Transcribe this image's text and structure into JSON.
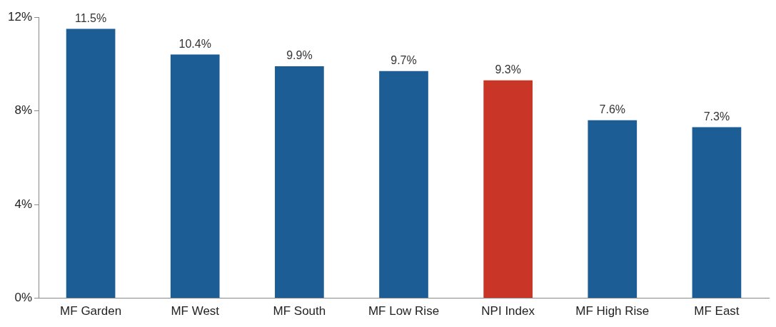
{
  "chart_data": {
    "type": "bar",
    "categories": [
      "MF Garden",
      "MF West",
      "MF South",
      "MF Low Rise",
      "NPI Index",
      "MF High Rise",
      "MF East"
    ],
    "values": [
      11.5,
      10.4,
      9.9,
      9.7,
      9.3,
      7.6,
      7.3
    ],
    "colors": [
      "#1b5d94",
      "#1b5d94",
      "#1b5d94",
      "#1b5d94",
      "#c93627",
      "#1b5d94",
      "#1b5d94"
    ],
    "value_labels": [
      "11.5%",
      "10.4%",
      "9.9%",
      "9.7%",
      "9.3%",
      "7.6%",
      "7.3%"
    ],
    "ylim": [
      0,
      12
    ],
    "yticks": [
      {
        "value": 0,
        "label": "0%"
      },
      {
        "value": 4,
        "label": "4%"
      },
      {
        "value": 8,
        "label": "8%"
      },
      {
        "value": 12,
        "label": "12%"
      }
    ],
    "grid": false,
    "legend": false
  }
}
